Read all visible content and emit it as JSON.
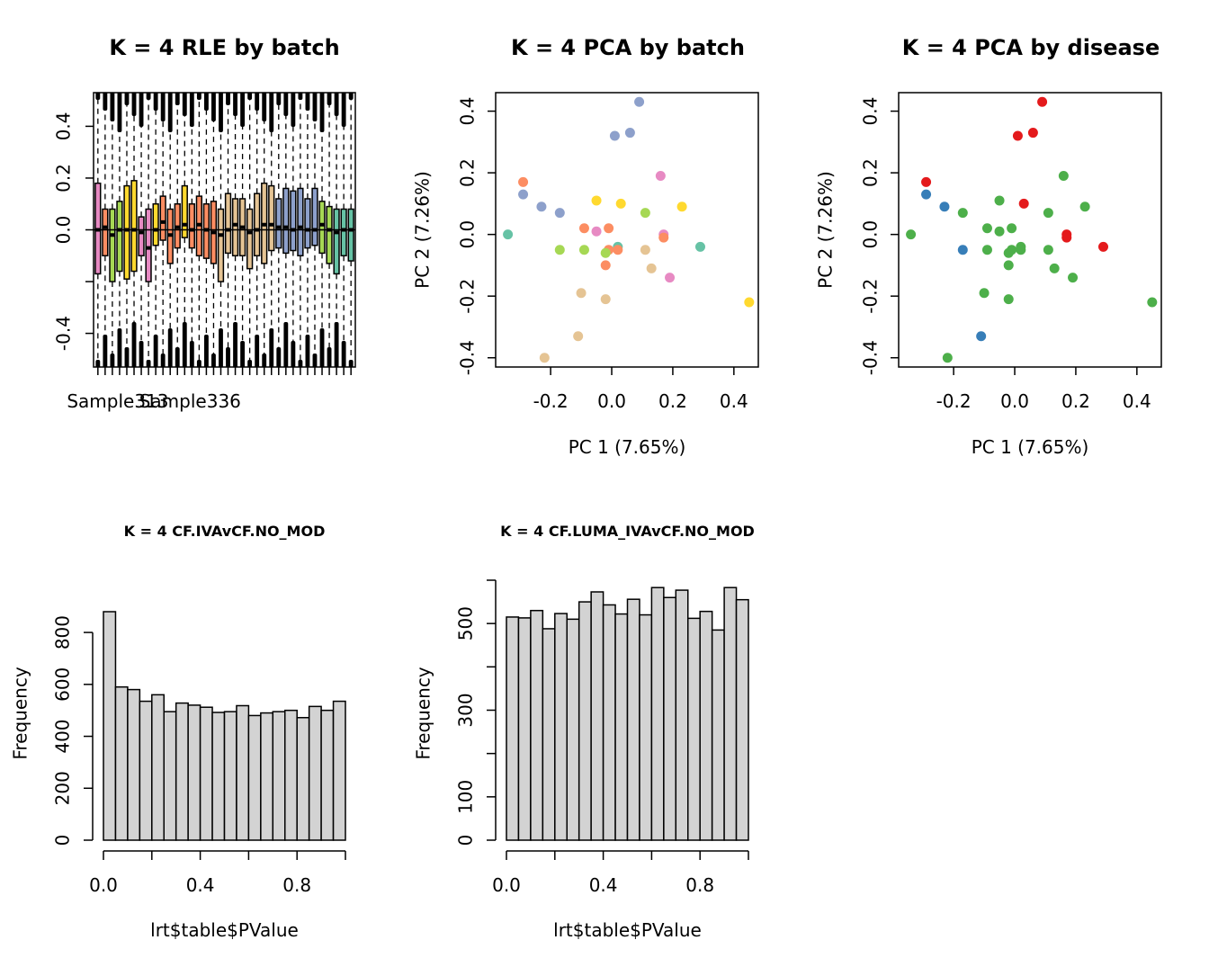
{
  "chart_data": [
    {
      "type": "box",
      "title": "K = 4 RLE by batch",
      "xlabel": "",
      "ylabel": "",
      "ylim": [
        -0.53,
        0.53
      ],
      "yticks": [
        -0.4,
        0.0,
        0.2,
        0.4
      ],
      "yticklabels": [
        "-0.4",
        "0.0",
        "0.2",
        "0.4"
      ],
      "yticks_unlabeled": [
        -0.2
      ],
      "xticklabels": [
        "Sample313",
        "Sample336"
      ],
      "xticklabel_positions": [
        3,
        13
      ],
      "boxes": [
        {
          "q1": -0.17,
          "q3": 0.18,
          "med": 0.0,
          "color": "#E78AC3"
        },
        {
          "q1": -0.1,
          "q3": 0.08,
          "med": 0.01,
          "color": "#FC8D62"
        },
        {
          "q1": -0.2,
          "q3": 0.08,
          "med": -0.02,
          "color": "#A6D854"
        },
        {
          "q1": -0.16,
          "q3": 0.11,
          "med": 0.0,
          "color": "#A6D854"
        },
        {
          "q1": -0.19,
          "q3": 0.17,
          "med": 0.0,
          "color": "#FFD92F"
        },
        {
          "q1": -0.16,
          "q3": 0.19,
          "med": 0.0,
          "color": "#FFD92F"
        },
        {
          "q1": -0.1,
          "q3": 0.05,
          "med": -0.01,
          "color": "#E78AC3"
        },
        {
          "q1": -0.2,
          "q3": 0.08,
          "med": -0.07,
          "color": "#E78AC3"
        },
        {
          "q1": -0.06,
          "q3": 0.1,
          "med": 0.0,
          "color": "#FFD92F"
        },
        {
          "q1": -0.04,
          "q3": 0.13,
          "med": 0.03,
          "color": "#FC8D62"
        },
        {
          "q1": -0.13,
          "q3": 0.08,
          "med": -0.02,
          "color": "#FC8D62"
        },
        {
          "q1": -0.07,
          "q3": 0.1,
          "med": 0.01,
          "color": "#FC8D62"
        },
        {
          "q1": -0.03,
          "q3": 0.17,
          "med": 0.02,
          "color": "#FFD92F"
        },
        {
          "q1": -0.07,
          "q3": 0.1,
          "med": 0.0,
          "color": "#FC8D62"
        },
        {
          "q1": -0.1,
          "q3": 0.13,
          "med": 0.02,
          "color": "#FC8D62"
        },
        {
          "q1": -0.11,
          "q3": 0.1,
          "med": 0.0,
          "color": "#FC8D62"
        },
        {
          "q1": -0.13,
          "q3": 0.11,
          "med": -0.01,
          "color": "#FC8D62"
        },
        {
          "q1": -0.2,
          "q3": 0.08,
          "med": -0.02,
          "color": "#E5C494"
        },
        {
          "q1": -0.09,
          "q3": 0.14,
          "med": 0.0,
          "color": "#E5C494"
        },
        {
          "q1": -0.1,
          "q3": 0.12,
          "med": 0.02,
          "color": "#E5C494"
        },
        {
          "q1": -0.1,
          "q3": 0.12,
          "med": 0.01,
          "color": "#E5C494"
        },
        {
          "q1": -0.15,
          "q3": 0.08,
          "med": -0.01,
          "color": "#E5C494"
        },
        {
          "q1": -0.1,
          "q3": 0.14,
          "med": 0.0,
          "color": "#E5C494"
        },
        {
          "q1": -0.13,
          "q3": 0.18,
          "med": 0.02,
          "color": "#E5C494"
        },
        {
          "q1": -0.08,
          "q3": 0.17,
          "med": 0.02,
          "color": "#E5C494"
        },
        {
          "q1": -0.07,
          "q3": 0.12,
          "med": 0.01,
          "color": "#8DA0CB"
        },
        {
          "q1": -0.09,
          "q3": 0.16,
          "med": 0.01,
          "color": "#8DA0CB"
        },
        {
          "q1": -0.08,
          "q3": 0.15,
          "med": 0.0,
          "color": "#8DA0CB"
        },
        {
          "q1": -0.1,
          "q3": 0.16,
          "med": 0.01,
          "color": "#8DA0CB"
        },
        {
          "q1": -0.07,
          "q3": 0.12,
          "med": 0.0,
          "color": "#8DA0CB"
        },
        {
          "q1": -0.06,
          "q3": 0.16,
          "med": 0.0,
          "color": "#8DA0CB"
        },
        {
          "q1": -0.09,
          "q3": 0.11,
          "med": 0.02,
          "color": "#A6D854"
        },
        {
          "q1": -0.13,
          "q3": 0.09,
          "med": 0.0,
          "color": "#A6D854"
        },
        {
          "q1": -0.17,
          "q3": 0.08,
          "med": -0.01,
          "color": "#66C2A5"
        },
        {
          "q1": -0.1,
          "q3": 0.08,
          "med": 0.0,
          "color": "#66C2A5"
        },
        {
          "q1": -0.12,
          "q3": 0.08,
          "med": 0.0,
          "color": "#66C2A5"
        }
      ]
    },
    {
      "type": "scatter",
      "title": "K = 4 PCA by batch",
      "xlabel": "PC 1 (7.65%)",
      "ylabel": "PC 2 (7.26%)",
      "xlim": [
        -0.38,
        0.48
      ],
      "ylim": [
        -0.43,
        0.46
      ],
      "xticks": [
        -0.2,
        0.0,
        0.2,
        0.4
      ],
      "xticklabels": [
        "-0.2",
        "0.0",
        "0.2",
        "0.4"
      ],
      "yticks": [
        -0.4,
        -0.2,
        0.0,
        0.2,
        0.4
      ],
      "yticklabels": [
        "-0.4",
        "-0.2",
        "0.0",
        "0.2",
        "0.4"
      ],
      "points": [
        {
          "x": 0.09,
          "y": 0.43,
          "color": "#8DA0CB"
        },
        {
          "x": 0.01,
          "y": 0.32,
          "color": "#8DA0CB"
        },
        {
          "x": 0.06,
          "y": 0.33,
          "color": "#8DA0CB"
        },
        {
          "x": -0.29,
          "y": 0.17,
          "color": "#FC8D62"
        },
        {
          "x": -0.29,
          "y": 0.13,
          "color": "#8DA0CB"
        },
        {
          "x": -0.23,
          "y": 0.09,
          "color": "#8DA0CB"
        },
        {
          "x": -0.17,
          "y": 0.07,
          "color": "#8DA0CB"
        },
        {
          "x": -0.34,
          "y": 0.0,
          "color": "#66C2A5"
        },
        {
          "x": 0.16,
          "y": 0.19,
          "color": "#E78AC3"
        },
        {
          "x": -0.05,
          "y": 0.11,
          "color": "#FFD92F"
        },
        {
          "x": 0.03,
          "y": 0.1,
          "color": "#FFD92F"
        },
        {
          "x": 0.23,
          "y": 0.09,
          "color": "#FFD92F"
        },
        {
          "x": 0.11,
          "y": 0.07,
          "color": "#A6D854"
        },
        {
          "x": -0.09,
          "y": 0.02,
          "color": "#FC8D62"
        },
        {
          "x": -0.01,
          "y": 0.02,
          "color": "#FC8D62"
        },
        {
          "x": -0.05,
          "y": 0.01,
          "color": "#E78AC3"
        },
        {
          "x": 0.17,
          "y": 0.0,
          "color": "#E78AC3"
        },
        {
          "x": 0.17,
          "y": -0.01,
          "color": "#FC8D62"
        },
        {
          "x": 0.02,
          "y": -0.04,
          "color": "#66C2A5"
        },
        {
          "x": 0.29,
          "y": -0.04,
          "color": "#66C2A5"
        },
        {
          "x": -0.17,
          "y": -0.05,
          "color": "#A6D854"
        },
        {
          "x": -0.09,
          "y": -0.05,
          "color": "#A6D854"
        },
        {
          "x": -0.01,
          "y": -0.05,
          "color": "#FC8D62"
        },
        {
          "x": 0.02,
          "y": -0.05,
          "color": "#FC8D62"
        },
        {
          "x": 0.11,
          "y": -0.05,
          "color": "#E5C494"
        },
        {
          "x": -0.02,
          "y": -0.06,
          "color": "#A6D854"
        },
        {
          "x": -0.02,
          "y": -0.1,
          "color": "#FC8D62"
        },
        {
          "x": 0.13,
          "y": -0.11,
          "color": "#E5C494"
        },
        {
          "x": 0.19,
          "y": -0.14,
          "color": "#E78AC3"
        },
        {
          "x": -0.1,
          "y": -0.19,
          "color": "#E5C494"
        },
        {
          "x": -0.02,
          "y": -0.21,
          "color": "#E5C494"
        },
        {
          "x": 0.45,
          "y": -0.22,
          "color": "#FFD92F"
        },
        {
          "x": -0.11,
          "y": -0.33,
          "color": "#E5C494"
        },
        {
          "x": -0.22,
          "y": -0.4,
          "color": "#E5C494"
        }
      ]
    },
    {
      "type": "scatter",
      "title": "K = 4 PCA by disease",
      "xlabel": "PC 1 (7.65%)",
      "ylabel": "PC 2 (7.26%)",
      "xlim": [
        -0.38,
        0.48
      ],
      "ylim": [
        -0.43,
        0.46
      ],
      "xticks": [
        -0.2,
        0.0,
        0.2,
        0.4
      ],
      "xticklabels": [
        "-0.2",
        "0.0",
        "0.2",
        "0.4"
      ],
      "yticks": [
        -0.4,
        -0.2,
        0.0,
        0.2,
        0.4
      ],
      "yticklabels": [
        "-0.4",
        "-0.2",
        "0.0",
        "0.2",
        "0.4"
      ],
      "points": [
        {
          "x": 0.09,
          "y": 0.43,
          "color": "#E41A1C"
        },
        {
          "x": 0.01,
          "y": 0.32,
          "color": "#E41A1C"
        },
        {
          "x": 0.06,
          "y": 0.33,
          "color": "#E41A1C"
        },
        {
          "x": -0.29,
          "y": 0.17,
          "color": "#E41A1C"
        },
        {
          "x": -0.29,
          "y": 0.13,
          "color": "#377EB8"
        },
        {
          "x": -0.23,
          "y": 0.09,
          "color": "#377EB8"
        },
        {
          "x": -0.17,
          "y": 0.07,
          "color": "#4DAF4A"
        },
        {
          "x": -0.34,
          "y": 0.0,
          "color": "#4DAF4A"
        },
        {
          "x": 0.16,
          "y": 0.19,
          "color": "#4DAF4A"
        },
        {
          "x": -0.05,
          "y": 0.11,
          "color": "#4DAF4A"
        },
        {
          "x": 0.03,
          "y": 0.1,
          "color": "#E41A1C"
        },
        {
          "x": 0.23,
          "y": 0.09,
          "color": "#4DAF4A"
        },
        {
          "x": 0.11,
          "y": 0.07,
          "color": "#4DAF4A"
        },
        {
          "x": -0.09,
          "y": 0.02,
          "color": "#4DAF4A"
        },
        {
          "x": -0.01,
          "y": 0.02,
          "color": "#4DAF4A"
        },
        {
          "x": -0.05,
          "y": 0.01,
          "color": "#4DAF4A"
        },
        {
          "x": 0.17,
          "y": 0.0,
          "color": "#E41A1C"
        },
        {
          "x": 0.17,
          "y": -0.01,
          "color": "#E41A1C"
        },
        {
          "x": 0.02,
          "y": -0.04,
          "color": "#4DAF4A"
        },
        {
          "x": 0.29,
          "y": -0.04,
          "color": "#E41A1C"
        },
        {
          "x": -0.17,
          "y": -0.05,
          "color": "#377EB8"
        },
        {
          "x": -0.09,
          "y": -0.05,
          "color": "#4DAF4A"
        },
        {
          "x": -0.01,
          "y": -0.05,
          "color": "#4DAF4A"
        },
        {
          "x": 0.02,
          "y": -0.05,
          "color": "#4DAF4A"
        },
        {
          "x": 0.11,
          "y": -0.05,
          "color": "#4DAF4A"
        },
        {
          "x": -0.02,
          "y": -0.06,
          "color": "#4DAF4A"
        },
        {
          "x": -0.02,
          "y": -0.1,
          "color": "#4DAF4A"
        },
        {
          "x": 0.13,
          "y": -0.11,
          "color": "#4DAF4A"
        },
        {
          "x": 0.19,
          "y": -0.14,
          "color": "#4DAF4A"
        },
        {
          "x": -0.1,
          "y": -0.19,
          "color": "#4DAF4A"
        },
        {
          "x": -0.02,
          "y": -0.21,
          "color": "#4DAF4A"
        },
        {
          "x": 0.45,
          "y": -0.22,
          "color": "#4DAF4A"
        },
        {
          "x": -0.11,
          "y": -0.33,
          "color": "#377EB8"
        },
        {
          "x": -0.22,
          "y": -0.4,
          "color": "#4DAF4A"
        }
      ]
    },
    {
      "type": "histogram",
      "title": "K = 4 CF.IVAvCF.NO_MOD",
      "xlabel": "lrt$table$PValue",
      "ylabel": "Frequency",
      "bin_width": 0.05,
      "xlim": [
        0,
        1
      ],
      "ylim": [
        0,
        880
      ],
      "xticks": [
        0.0,
        0.2,
        0.4,
        0.6,
        0.8,
        1.0
      ],
      "xticklabels": [
        "0.0",
        "",
        "0.4",
        "",
        "0.8",
        ""
      ],
      "yticks": [
        0,
        200,
        400,
        600,
        800
      ],
      "yticklabels": [
        "0",
        "200",
        "400",
        "600",
        "800"
      ],
      "counts": [
        880,
        590,
        580,
        535,
        560,
        495,
        528,
        520,
        512,
        492,
        495,
        518,
        480,
        490,
        495,
        500,
        472,
        515,
        500,
        535
      ]
    },
    {
      "type": "histogram",
      "title": "K = 4 CF.LUMA_IVAvCF.NO_MOD",
      "xlabel": "lrt$table$PValue",
      "ylabel": "Frequency",
      "bin_width": 0.05,
      "xlim": [
        0,
        1
      ],
      "ylim": [
        0,
        600
      ],
      "xticks": [
        0.0,
        0.2,
        0.4,
        0.6,
        0.8,
        1.0
      ],
      "xticklabels": [
        "0.0",
        "",
        "0.4",
        "",
        "0.8",
        ""
      ],
      "yticks": [
        0,
        100,
        200,
        300,
        400,
        500,
        600
      ],
      "yticklabels": [
        "0",
        "100",
        "",
        "300",
        "",
        "500",
        ""
      ],
      "counts": [
        515,
        513,
        530,
        488,
        523,
        510,
        550,
        573,
        543,
        522,
        556,
        520,
        583,
        560,
        577,
        512,
        528,
        485,
        583,
        555
      ]
    }
  ]
}
